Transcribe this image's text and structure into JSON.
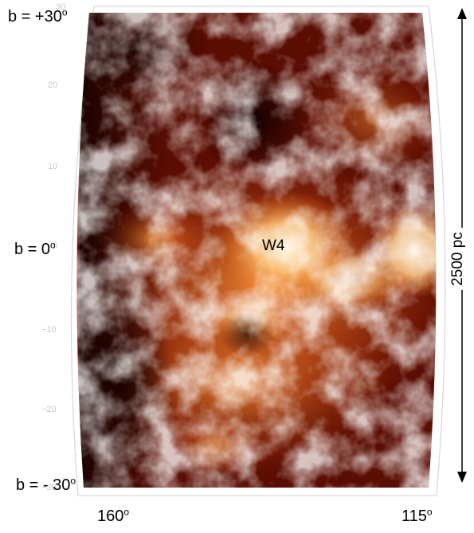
{
  "labels": {
    "b_top": "b = +30",
    "b_mid": "b = 0",
    "b_bottom": "b = - 30",
    "degree_mark": "o",
    "l_left": "160",
    "l_right": "115",
    "feature": "W4",
    "scale": "2500 pc"
  },
  "ticks": [
    "30",
    "20",
    "10",
    "0",
    "−10",
    "−20",
    "−30"
  ],
  "colors": {
    "background": "#ffffff",
    "map_dark": "#1a0300",
    "map_mid": "#c0360a",
    "map_bright": "#fff3d8",
    "arrow": "#000000"
  }
}
